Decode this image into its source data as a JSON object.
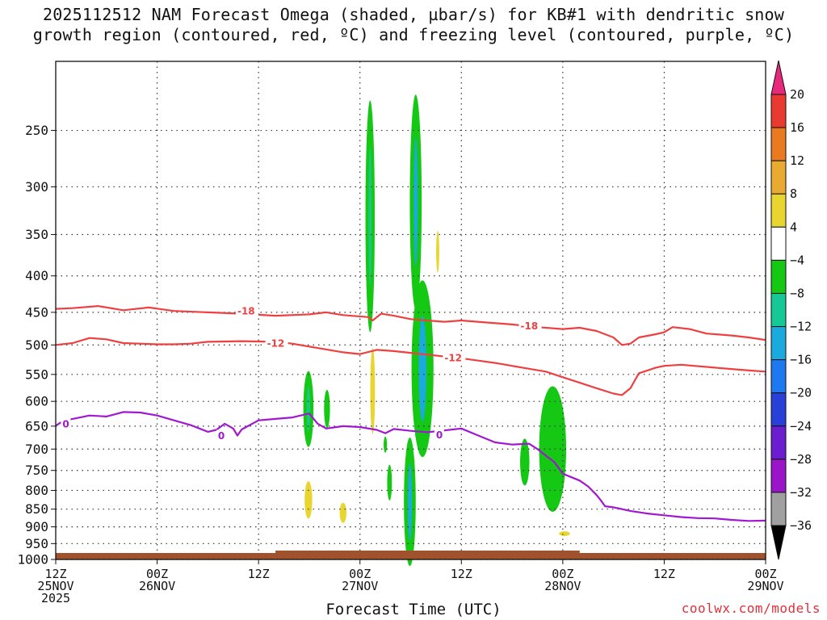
{
  "title": {
    "line1": "2025112512 NAM Forecast Omega (shaded, µbar/s) for KB#1 with dendritic snow",
    "line2": "growth region (contoured, red, ºC) and freezing level (contoured, purple, ºC)"
  },
  "xlabel": "Forecast Time (UTC)",
  "credit": "coolwx.com/models",
  "chart_data": {
    "type": "time-height",
    "x_hours": [
      0,
      84
    ],
    "y_pressure": {
      "top": 200,
      "bottom": 1000
    },
    "y_ticks": [
      250,
      300,
      350,
      400,
      450,
      500,
      550,
      600,
      650,
      700,
      750,
      800,
      850,
      900,
      950,
      1000
    ],
    "x_ticks": [
      {
        "h": 0,
        "l1": "12Z",
        "l2": "25NOV",
        "l3": "2025"
      },
      {
        "h": 12,
        "l1": "00Z",
        "l2": "26NOV",
        "l3": ""
      },
      {
        "h": 24,
        "l1": "12Z",
        "l2": "",
        "l3": ""
      },
      {
        "h": 36,
        "l1": "00Z",
        "l2": "27NOV",
        "l3": ""
      },
      {
        "h": 48,
        "l1": "12Z",
        "l2": "",
        "l3": ""
      },
      {
        "h": 60,
        "l1": "00Z",
        "l2": "28NOV",
        "l3": ""
      },
      {
        "h": 72,
        "l1": "12Z",
        "l2": "",
        "l3": ""
      },
      {
        "h": 84,
        "l1": "00Z",
        "l2": "29NOV",
        "l3": ""
      }
    ],
    "grid": true,
    "colorbar": {
      "labels": [
        "20",
        "16",
        "12",
        "8",
        "4",
        "−4",
        "−8",
        "−12",
        "−16",
        "−20",
        "−24",
        "−28",
        "−32",
        "−36"
      ],
      "colors": [
        "#e8287a",
        "#e83a30",
        "#ea7a1f",
        "#e8aa30",
        "#e8d530",
        "#ffffff",
        "#14c814",
        "#16c896",
        "#1aaade",
        "#1e78f0",
        "#2840d8",
        "#6a1ed0",
        "#9a14c8",
        "#a0a0a0",
        "#000000"
      ]
    },
    "contour_labels": {
      "m18": "-18",
      "m12": "-12",
      "zero": "0"
    },
    "series": [
      {
        "name": "-18",
        "color": "#ee4040",
        "points": [
          [
            0,
            445
          ],
          [
            2,
            444
          ],
          [
            5,
            441
          ],
          [
            8,
            447
          ],
          [
            11,
            443
          ],
          [
            14,
            448
          ],
          [
            18,
            450
          ],
          [
            22,
            452
          ],
          [
            26,
            455
          ],
          [
            30,
            453
          ],
          [
            32,
            450
          ],
          [
            34,
            454
          ],
          [
            37,
            457
          ],
          [
            37.5,
            462
          ],
          [
            38.5,
            452
          ],
          [
            40,
            455
          ],
          [
            42,
            460
          ],
          [
            44,
            462
          ],
          [
            46,
            464
          ],
          [
            48,
            462
          ],
          [
            51,
            465
          ],
          [
            54,
            468
          ],
          [
            57,
            472
          ],
          [
            60,
            475
          ],
          [
            62,
            473
          ],
          [
            64,
            478
          ],
          [
            65,
            483
          ],
          [
            66,
            488
          ],
          [
            67,
            500
          ],
          [
            68,
            498
          ],
          [
            69,
            488
          ],
          [
            71,
            483
          ],
          [
            72,
            480
          ],
          [
            73,
            472
          ],
          [
            75,
            475
          ],
          [
            77,
            482
          ],
          [
            80,
            485
          ],
          [
            82,
            488
          ],
          [
            84,
            492
          ]
        ]
      },
      {
        "name": "-12",
        "color": "#ee4040",
        "points": [
          [
            0,
            500
          ],
          [
            2,
            497
          ],
          [
            4,
            489
          ],
          [
            6,
            491
          ],
          [
            8,
            497
          ],
          [
            10,
            498
          ],
          [
            12,
            499
          ],
          [
            14,
            499
          ],
          [
            16,
            498
          ],
          [
            18,
            495
          ],
          [
            22,
            494
          ],
          [
            26,
            495
          ],
          [
            28,
            498
          ],
          [
            31,
            505
          ],
          [
            34,
            512
          ],
          [
            36,
            515
          ],
          [
            38,
            508
          ],
          [
            40,
            510
          ],
          [
            42,
            513
          ],
          [
            44,
            516
          ],
          [
            46,
            519
          ],
          [
            48,
            522
          ],
          [
            50,
            526
          ],
          [
            52,
            530
          ],
          [
            54,
            535
          ],
          [
            56,
            540
          ],
          [
            58,
            545
          ],
          [
            60,
            555
          ],
          [
            62,
            565
          ],
          [
            64,
            575
          ],
          [
            66,
            585
          ],
          [
            67,
            588
          ],
          [
            68,
            575
          ],
          [
            69,
            548
          ],
          [
            71,
            538
          ],
          [
            72,
            535
          ],
          [
            74,
            533
          ],
          [
            78,
            538
          ],
          [
            82,
            543
          ],
          [
            84,
            545
          ]
        ]
      },
      {
        "name": "0",
        "color": "#a018d0",
        "points": [
          [
            0,
            649
          ],
          [
            1,
            638
          ],
          [
            2,
            635
          ],
          [
            4,
            628
          ],
          [
            6,
            630
          ],
          [
            8,
            621
          ],
          [
            10,
            622
          ],
          [
            12,
            628
          ],
          [
            14,
            638
          ],
          [
            16,
            648
          ],
          [
            18,
            662
          ],
          [
            19,
            658
          ],
          [
            20,
            645
          ],
          [
            21,
            655
          ],
          [
            21.5,
            670
          ],
          [
            22,
            657
          ],
          [
            24,
            638
          ],
          [
            26,
            635
          ],
          [
            28,
            632
          ],
          [
            30,
            624
          ],
          [
            31,
            645
          ],
          [
            32,
            655
          ],
          [
            34,
            650
          ],
          [
            36,
            652
          ],
          [
            38,
            658
          ],
          [
            39,
            665
          ],
          [
            40,
            656
          ],
          [
            42,
            660
          ],
          [
            44,
            663
          ],
          [
            46,
            659
          ],
          [
            48,
            655
          ],
          [
            50,
            670
          ],
          [
            52,
            685
          ],
          [
            54,
            690
          ],
          [
            56,
            688
          ],
          [
            57,
            700
          ],
          [
            58,
            715
          ],
          [
            59,
            730
          ],
          [
            60,
            758
          ],
          [
            62,
            775
          ],
          [
            63,
            790
          ],
          [
            64,
            812
          ],
          [
            64.5,
            826
          ],
          [
            65,
            842
          ],
          [
            66,
            845
          ],
          [
            68,
            855
          ],
          [
            70,
            862
          ],
          [
            72,
            867
          ],
          [
            74,
            872
          ],
          [
            76,
            875
          ],
          [
            78,
            876
          ],
          [
            80,
            880
          ],
          [
            82,
            883
          ],
          [
            84,
            882
          ]
        ]
      }
    ],
    "shaded": [
      {
        "color": "#14c814",
        "cx": 37.2,
        "cy": 330,
        "rx": 0.55,
        "ry": 118,
        "core": "#17c87e"
      },
      {
        "color": "#14c814",
        "cx": 42.6,
        "cy": 315,
        "rx": 0.7,
        "ry": 105,
        "core": "#1aaade"
      },
      {
        "color": "#14c814",
        "cx": 43.4,
        "cy": 540,
        "rx": 1.3,
        "ry": 150,
        "core": "#1aaade"
      },
      {
        "color": "#14c814",
        "cx": 41.9,
        "cy": 830,
        "rx": 0.7,
        "ry": 170,
        "core": "#1aaade"
      },
      {
        "color": "#14c814",
        "cx": 29.9,
        "cy": 615,
        "rx": 0.6,
        "ry": 75,
        "core": "#17c87e"
      },
      {
        "color": "#14c814",
        "cx": 32.1,
        "cy": 615,
        "rx": 0.35,
        "ry": 38,
        "core": ""
      },
      {
        "color": "#14c814",
        "cx": 39.0,
        "cy": 690,
        "rx": 0.2,
        "ry": 18,
        "core": ""
      },
      {
        "color": "#14c814",
        "cx": 39.5,
        "cy": 780,
        "rx": 0.28,
        "ry": 45,
        "core": ""
      },
      {
        "color": "#14c814",
        "cx": 55.5,
        "cy": 730,
        "rx": 0.55,
        "ry": 55,
        "core": ""
      },
      {
        "color": "#14c814",
        "cx": 58.8,
        "cy": 700,
        "rx": 1.6,
        "ry": 140,
        "core": ""
      },
      {
        "color": "#e8d530",
        "cx": 37.5,
        "cy": 580,
        "rx": 0.28,
        "ry": 80,
        "core": ""
      },
      {
        "color": "#e8d530",
        "cx": 45.2,
        "cy": 370,
        "rx": 0.18,
        "ry": 25,
        "core": ""
      },
      {
        "color": "#e8d530",
        "cx": 29.9,
        "cy": 825,
        "rx": 0.45,
        "ry": 50,
        "core": ""
      },
      {
        "color": "#e8d530",
        "cx": 34.0,
        "cy": 860,
        "rx": 0.4,
        "ry": 28,
        "core": ""
      },
      {
        "color": "#e8d530",
        "cx": 60.2,
        "cy": 920,
        "rx": 0.65,
        "ry": 7,
        "core": ""
      }
    ],
    "terrain": {
      "color": "#a0522d"
    }
  }
}
